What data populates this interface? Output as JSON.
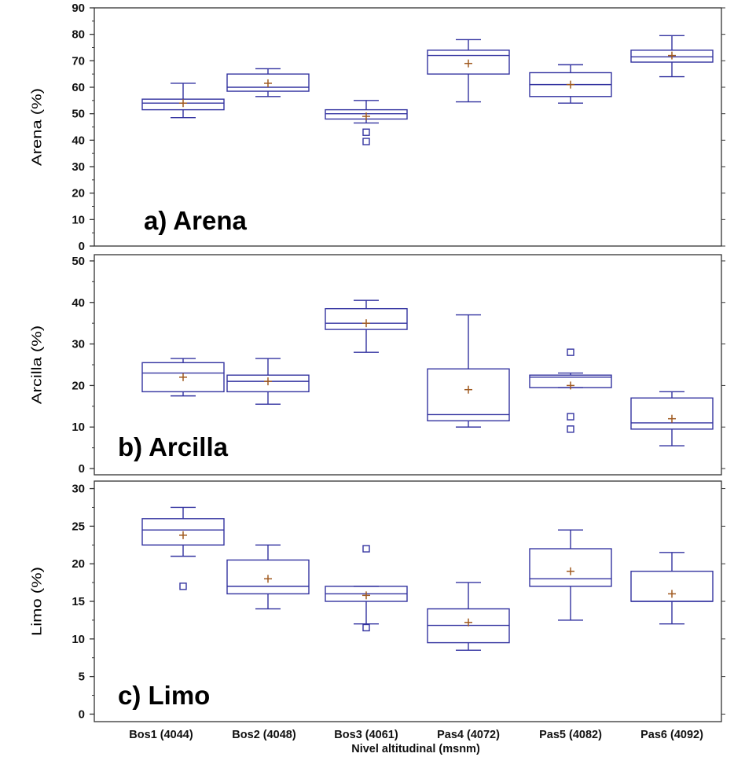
{
  "colors": {
    "box": "#3333a0",
    "mean": "#a05a20",
    "axis": "#333333",
    "text": "#111111"
  },
  "chart_data": [
    {
      "type": "box",
      "title": "a) Arena",
      "ylabel": "Arena (%)",
      "ylim": [
        0,
        90
      ],
      "yticks": [
        0,
        10,
        20,
        30,
        40,
        50,
        60,
        70,
        80,
        90
      ],
      "grid": false,
      "categories": [
        "Bos1 (4044)",
        "Bos2 (4048)",
        "Bos3 (4061)",
        "Pas4 (4072)",
        "Pas5 (4082)",
        "Pas6 (4092)"
      ],
      "boxes": [
        {
          "whisker_low": 48.5,
          "q1": 51.5,
          "median": 54,
          "q3": 55.5,
          "whisker_high": 61.5,
          "mean": 54,
          "outliers": []
        },
        {
          "whisker_low": 56.5,
          "q1": 58.5,
          "median": 60,
          "q3": 65,
          "whisker_high": 67,
          "mean": 61.5,
          "outliers": []
        },
        {
          "whisker_low": 46.5,
          "q1": 48,
          "median": 50,
          "q3": 51.5,
          "whisker_high": 55,
          "mean": 49,
          "outliers": [
            43,
            39.5
          ]
        },
        {
          "whisker_low": 54.5,
          "q1": 65,
          "median": 72,
          "q3": 74,
          "whisker_high": 78,
          "mean": 69,
          "outliers": []
        },
        {
          "whisker_low": 54,
          "q1": 56.5,
          "median": 61,
          "q3": 65.5,
          "whisker_high": 68.5,
          "mean": 61,
          "outliers": []
        },
        {
          "whisker_low": 64,
          "q1": 69.5,
          "median": 71.5,
          "q3": 74,
          "whisker_high": 79.5,
          "mean": 72,
          "outliers": []
        }
      ]
    },
    {
      "type": "box",
      "title": "b) Arcilla",
      "ylabel": "Arcilla (%)",
      "ylim": [
        -1.5,
        51.5
      ],
      "yticks": [
        0,
        10,
        20,
        30,
        40,
        50
      ],
      "grid": false,
      "categories": [
        "Bos1 (4044)",
        "Bos2 (4048)",
        "Bos3 (4061)",
        "Pas4 (4072)",
        "Pas5 (4082)",
        "Pas6 (4092)"
      ],
      "boxes": [
        {
          "whisker_low": 17.5,
          "q1": 18.5,
          "median": 23,
          "q3": 25.5,
          "whisker_high": 26.5,
          "mean": 22,
          "outliers": []
        },
        {
          "whisker_low": 15.5,
          "q1": 18.5,
          "median": 21,
          "q3": 22.5,
          "whisker_high": 26.5,
          "mean": 21,
          "outliers": []
        },
        {
          "whisker_low": 28,
          "q1": 33.5,
          "median": 35,
          "q3": 38.5,
          "whisker_high": 40.5,
          "mean": 35,
          "outliers": []
        },
        {
          "whisker_low": 10,
          "q1": 11.5,
          "median": 13,
          "q3": 24,
          "whisker_high": 37,
          "mean": 19,
          "outliers": []
        },
        {
          "whisker_low": 19.5,
          "q1": 19.5,
          "median": 22,
          "q3": 22.5,
          "whisker_high": 23,
          "mean": 20,
          "outliers": [
            28,
            12.5,
            9.5
          ]
        },
        {
          "whisker_low": 5.5,
          "q1": 9.5,
          "median": 11,
          "q3": 17,
          "whisker_high": 18.5,
          "mean": 12,
          "outliers": []
        }
      ]
    },
    {
      "type": "box",
      "title": "c) Limo",
      "ylabel": "Limo (%)",
      "ylim": [
        -1,
        31
      ],
      "yticks": [
        0,
        5,
        10,
        15,
        20,
        25,
        30
      ],
      "grid": false,
      "xlabel": "Nivel altitudinal (msnm)",
      "categories": [
        "Bos1 (4044)",
        "Bos2 (4048)",
        "Bos3 (4061)",
        "Pas4 (4072)",
        "Pas5 (4082)",
        "Pas6 (4092)"
      ],
      "boxes": [
        {
          "whisker_low": 21,
          "q1": 22.5,
          "median": 24.5,
          "q3": 26,
          "whisker_high": 27.5,
          "mean": 23.8,
          "outliers": [
            17
          ]
        },
        {
          "whisker_low": 14,
          "q1": 16,
          "median": 17,
          "q3": 20.5,
          "whisker_high": 22.5,
          "mean": 18,
          "outliers": []
        },
        {
          "whisker_low": 12,
          "q1": 15,
          "median": 16,
          "q3": 17,
          "whisker_high": 17,
          "mean": 15.8,
          "outliers": [
            22,
            11.5
          ]
        },
        {
          "whisker_low": 8.5,
          "q1": 9.5,
          "median": 11.8,
          "q3": 14,
          "whisker_high": 17.5,
          "mean": 12.2,
          "outliers": []
        },
        {
          "whisker_low": 12.5,
          "q1": 17,
          "median": 18,
          "q3": 22,
          "whisker_high": 24.5,
          "mean": 19,
          "outliers": []
        },
        {
          "whisker_low": 12,
          "q1": 15,
          "median": 15,
          "q3": 19,
          "whisker_high": 21.5,
          "mean": 16,
          "outliers": []
        }
      ]
    }
  ]
}
